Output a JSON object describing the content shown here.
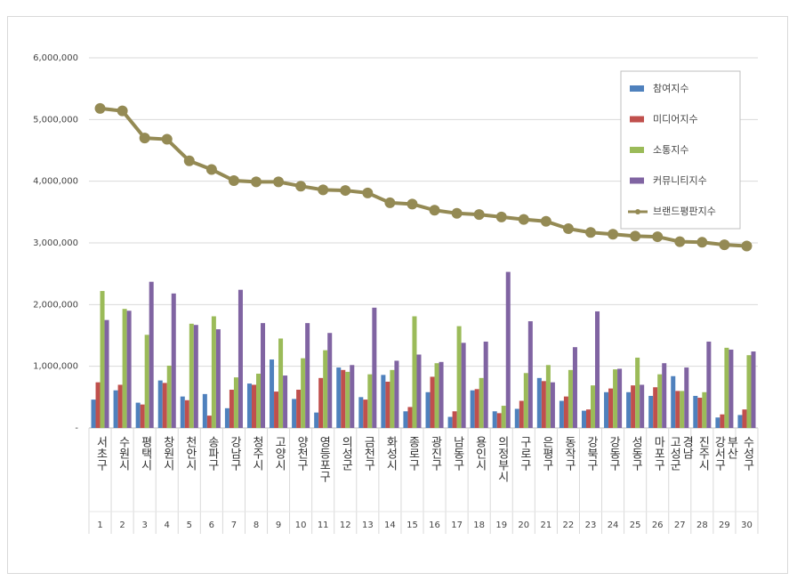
{
  "chart_data": {
    "type": "bar",
    "categories": [
      "서초구",
      "수원시",
      "평택시",
      "창원시",
      "천안시",
      "송파구",
      "강남구",
      "청주시",
      "고양시",
      "양천구",
      "영등포구",
      "의성군",
      "금천구",
      "화성시",
      "종로구",
      "광진구",
      "남동구",
      "용인시",
      "의정부시",
      "구로구",
      "은평구",
      "동작구",
      "강북구",
      "강동구",
      "성동구",
      "마포구",
      "고성군 경남",
      "진주시",
      "강서구 부산",
      "수성구"
    ],
    "ranks": [
      "1",
      "2",
      "3",
      "4",
      "5",
      "6",
      "7",
      "8",
      "9",
      "10",
      "11",
      "12",
      "13",
      "14",
      "15",
      "16",
      "17",
      "18",
      "19",
      "20",
      "21",
      "22",
      "23",
      "24",
      "25",
      "26",
      "27",
      "28",
      "29",
      "30"
    ],
    "series": [
      {
        "name": "참여지수",
        "color": "#4f81bd",
        "values": [
          460000,
          610000,
          410000,
          770000,
          510000,
          550000,
          320000,
          720000,
          1110000,
          470000,
          250000,
          980000,
          500000,
          860000,
          270000,
          580000,
          180000,
          610000,
          270000,
          310000,
          810000,
          440000,
          280000,
          580000,
          580000,
          520000,
          840000,
          520000,
          170000,
          210000
        ]
      },
      {
        "name": "미디어지수",
        "color": "#c0504d",
        "values": [
          740000,
          700000,
          380000,
          730000,
          450000,
          200000,
          620000,
          700000,
          590000,
          620000,
          810000,
          940000,
          460000,
          750000,
          340000,
          830000,
          270000,
          630000,
          240000,
          440000,
          760000,
          510000,
          300000,
          640000,
          690000,
          660000,
          600000,
          490000,
          220000,
          300000
        ]
      },
      {
        "name": "소통지수",
        "color": "#9bbb59",
        "values": [
          2220000,
          1930000,
          1510000,
          1010000,
          1690000,
          1810000,
          820000,
          880000,
          1450000,
          1130000,
          1260000,
          910000,
          870000,
          940000,
          1810000,
          1050000,
          1650000,
          810000,
          360000,
          890000,
          1020000,
          940000,
          690000,
          950000,
          1140000,
          870000,
          600000,
          580000,
          1300000,
          1180000
        ]
      },
      {
        "name": "커뮤니티지수",
        "color": "#8064a2",
        "values": [
          1750000,
          1900000,
          2370000,
          2180000,
          1670000,
          1600000,
          2240000,
          1700000,
          850000,
          1700000,
          1540000,
          1020000,
          1950000,
          1090000,
          1190000,
          1070000,
          1380000,
          1400000,
          2530000,
          1730000,
          740000,
          1310000,
          1890000,
          960000,
          700000,
          1050000,
          980000,
          1400000,
          1270000,
          1240000
        ]
      },
      {
        "name": "브랜드평판지수",
        "color": "#948a54",
        "type": "line",
        "values": [
          5180000,
          5140000,
          4700000,
          4680000,
          4330000,
          4190000,
          4010000,
          3990000,
          3990000,
          3920000,
          3860000,
          3850000,
          3810000,
          3650000,
          3630000,
          3530000,
          3480000,
          3460000,
          3420000,
          3380000,
          3350000,
          3230000,
          3170000,
          3140000,
          3110000,
          3100000,
          3020000,
          3010000,
          2970000,
          2950000
        ]
      }
    ],
    "ylim": [
      0,
      6000000
    ],
    "yticks": [
      {
        "value": 0,
        "label": "-"
      },
      {
        "value": 1000000,
        "label": "1,000,000"
      },
      {
        "value": 2000000,
        "label": "2,000,000"
      },
      {
        "value": 3000000,
        "label": "3,000,000"
      },
      {
        "value": 4000000,
        "label": "4,000,000"
      },
      {
        "value": 5000000,
        "label": "5,000,000"
      },
      {
        "value": 6000000,
        "label": "6,000,000"
      }
    ],
    "grid": true,
    "legend": "top-right"
  }
}
